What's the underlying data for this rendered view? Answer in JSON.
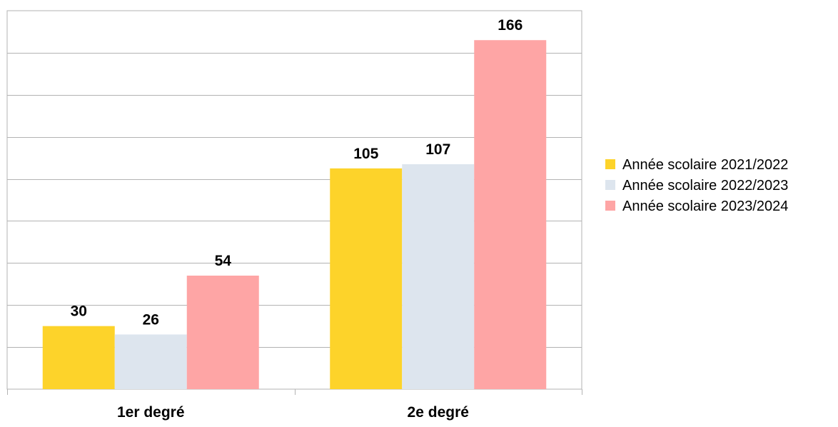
{
  "chart_data": {
    "type": "bar",
    "categories": [
      "1er degré",
      "2e degré"
    ],
    "series": [
      {
        "name": "Année scolaire 2021/2022",
        "values": [
          30,
          105
        ],
        "color": "#FDD32A"
      },
      {
        "name": "Année scolaire 2022/2023",
        "values": [
          26,
          107
        ],
        "color": "#DDE5EE"
      },
      {
        "name": "Année scolaire 2023/2024",
        "values": [
          54,
          166
        ],
        "color": "#FEA5A5"
      }
    ],
    "title": "",
    "xlabel": "",
    "ylabel": "",
    "ylim": [
      0,
      180
    ],
    "ygrid_step": 20,
    "grid": true,
    "legend_position": "right",
    "data_labels": true
  }
}
